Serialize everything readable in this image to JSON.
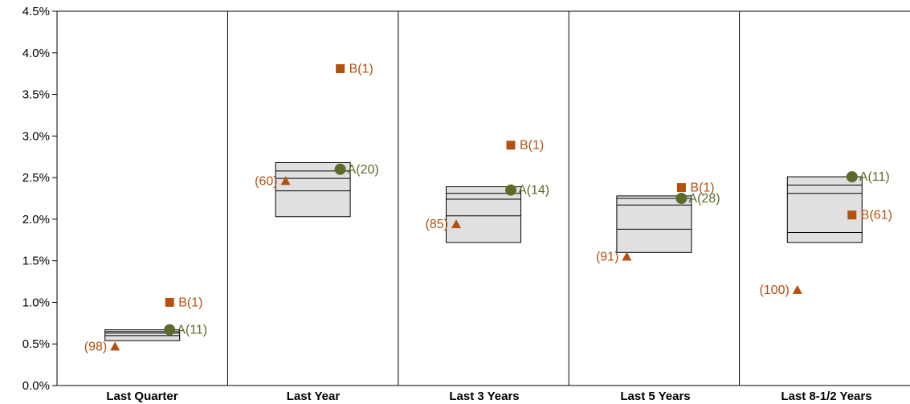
{
  "chart_data": {
    "type": "floating-bar-with-markers",
    "title": "",
    "xlabel": "",
    "ylabel": "",
    "ylim": [
      0,
      4.5
    ],
    "y_ticks": [
      0.0,
      0.5,
      1.0,
      1.5,
      2.0,
      2.5,
      3.0,
      3.5,
      4.0,
      4.5
    ],
    "y_tick_labels": [
      "0.0%",
      "0.5%",
      "1.0%",
      "1.5%",
      "2.0%",
      "2.5%",
      "3.0%",
      "3.5%",
      "4.0%",
      "4.5%"
    ],
    "categories": [
      "Last Quarter",
      "Last Year",
      "Last 3 Years",
      "Last 5 Years",
      "Last 8-1/2 Years"
    ],
    "grid": false,
    "colors": {
      "box_fill": "#e0e0e0",
      "box_stroke": "#000000",
      "A": "#5b6b2a",
      "A_label": "#5b6b2a",
      "B": "#b5500f",
      "triangle": "#b5500f"
    },
    "boxes": [
      {
        "low": 0.54,
        "q1": 0.6,
        "median": 0.63,
        "q3": 0.65,
        "high": 0.67
      },
      {
        "low": 2.03,
        "q1": 2.34,
        "median": 2.49,
        "q3": 2.58,
        "high": 2.68
      },
      {
        "low": 1.72,
        "q1": 2.04,
        "median": 2.24,
        "q3": 2.31,
        "high": 2.39
      },
      {
        "low": 1.6,
        "q1": 1.88,
        "median": 2.17,
        "q3": 2.25,
        "high": 2.28
      },
      {
        "low": 1.72,
        "q1": 1.84,
        "median": 2.31,
        "q3": 2.41,
        "high": 2.51
      }
    ],
    "series": [
      {
        "name": "A",
        "marker": "circle",
        "values": [
          0.67,
          2.6,
          2.35,
          2.25,
          2.51
        ],
        "labels": [
          "A(11)",
          "A(20)",
          "A(14)",
          "A(28)",
          "A(11)"
        ]
      },
      {
        "name": "B",
        "marker": "square",
        "values": [
          1.0,
          3.81,
          2.89,
          2.38,
          2.05
        ],
        "labels": [
          "B(1)",
          "B(1)",
          "B(1)",
          "B(1)",
          "B(61)"
        ]
      },
      {
        "name": "",
        "marker": "triangle",
        "values": [
          0.47,
          2.46,
          1.94,
          1.55,
          1.15
        ],
        "labels": [
          "(98)",
          "(60)",
          "(85)",
          "(91)",
          "(100)"
        ]
      }
    ]
  }
}
